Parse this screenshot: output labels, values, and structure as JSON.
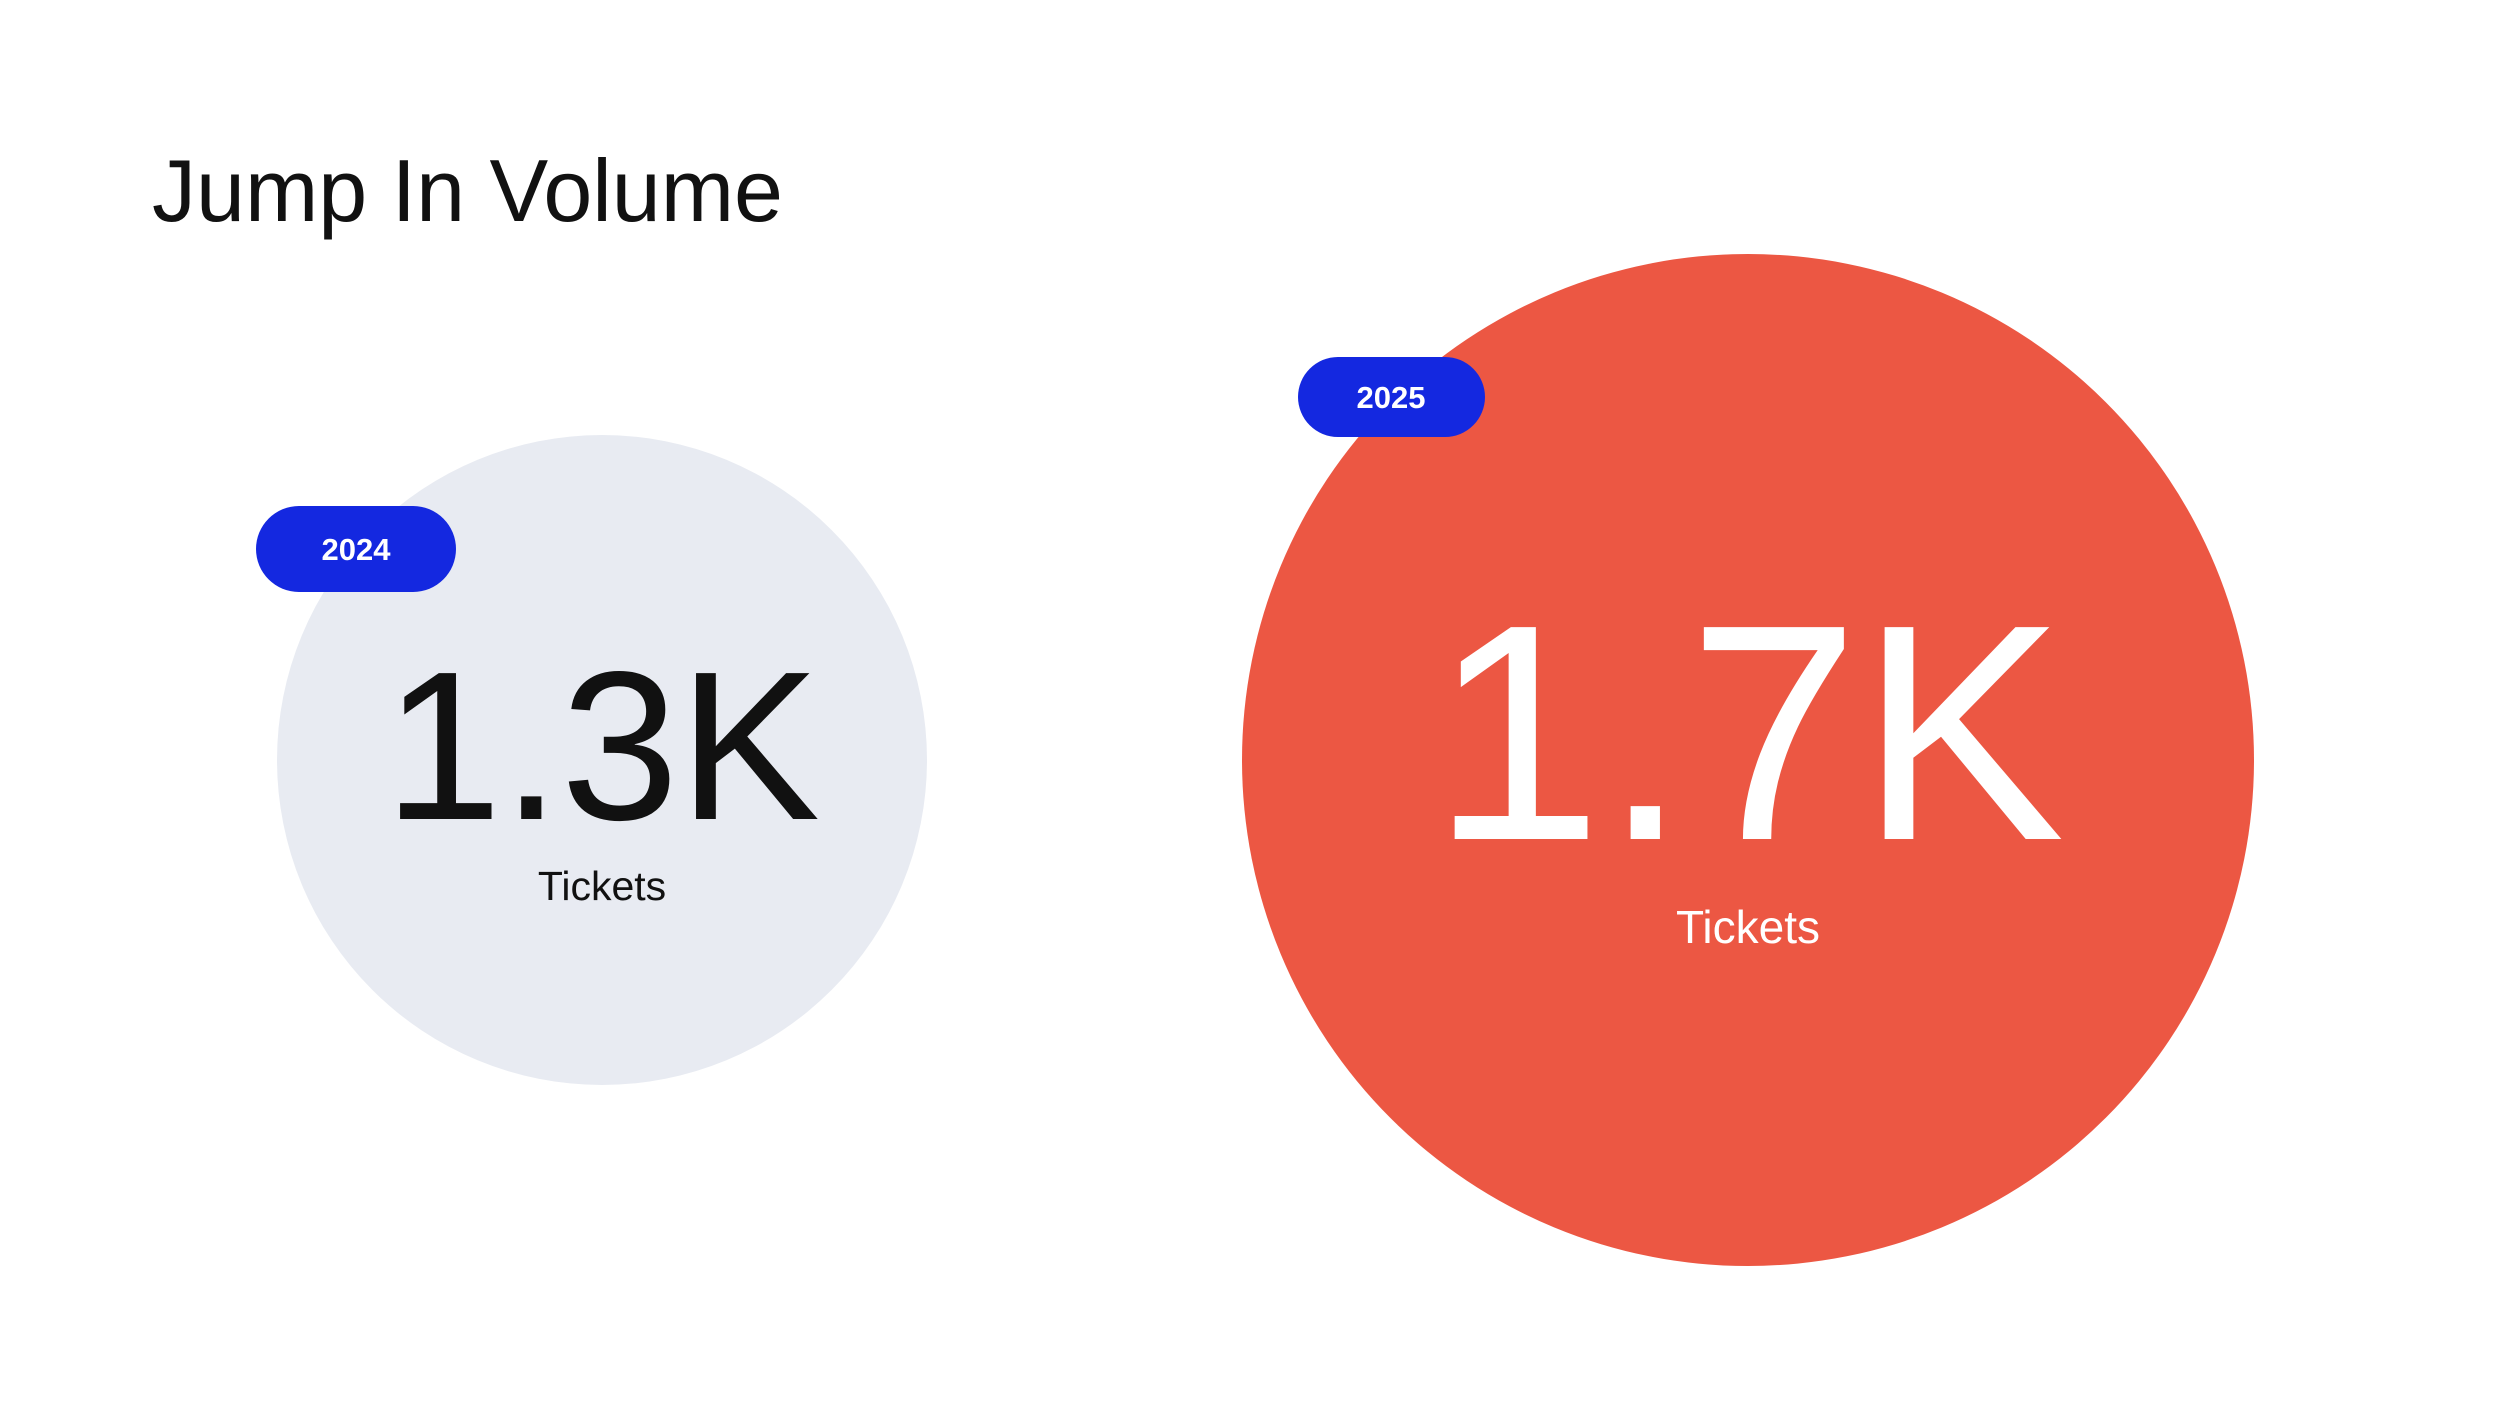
{
  "title": "Jump In Volume",
  "cards": [
    {
      "year": "2024",
      "value": "1.3K",
      "unit": "Tickets"
    },
    {
      "year": "2025",
      "value": "1.7K",
      "unit": "Tickets"
    }
  ]
}
